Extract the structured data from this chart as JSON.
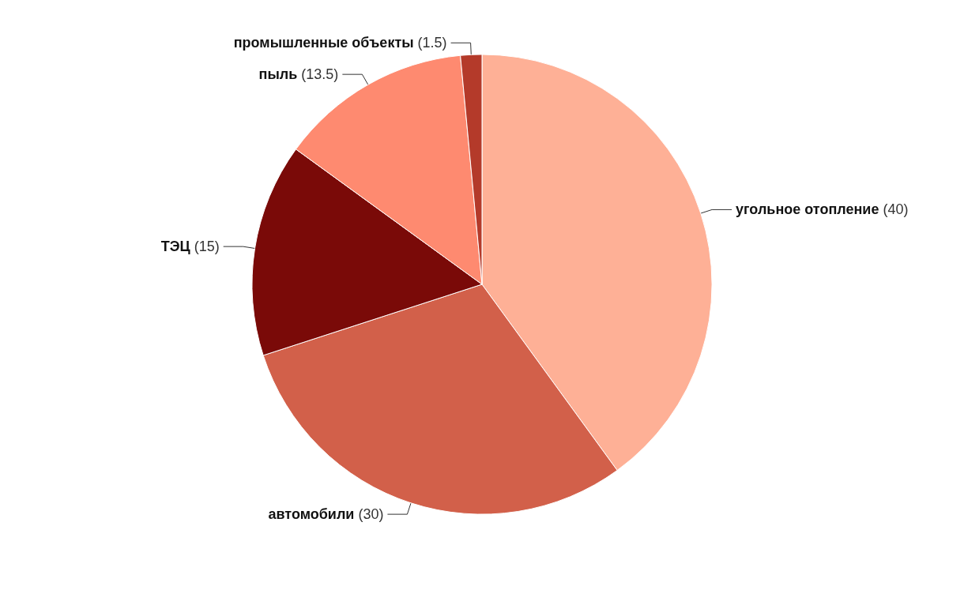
{
  "chart_data": {
    "type": "pie",
    "categories": [
      "угольное отопление",
      "автомобили",
      "ТЭЦ",
      "пыль",
      "промышленные объекты"
    ],
    "values": [
      40,
      30,
      15,
      13.5,
      1.5
    ],
    "colors": [
      "#feb096",
      "#d2604a",
      "#7a0a08",
      "#fe8a70",
      "#b43a2a"
    ],
    "value_labels": [
      "(40)",
      "(30)",
      "(15)",
      "(13.5)",
      "(1.5)"
    ],
    "legend": false
  }
}
